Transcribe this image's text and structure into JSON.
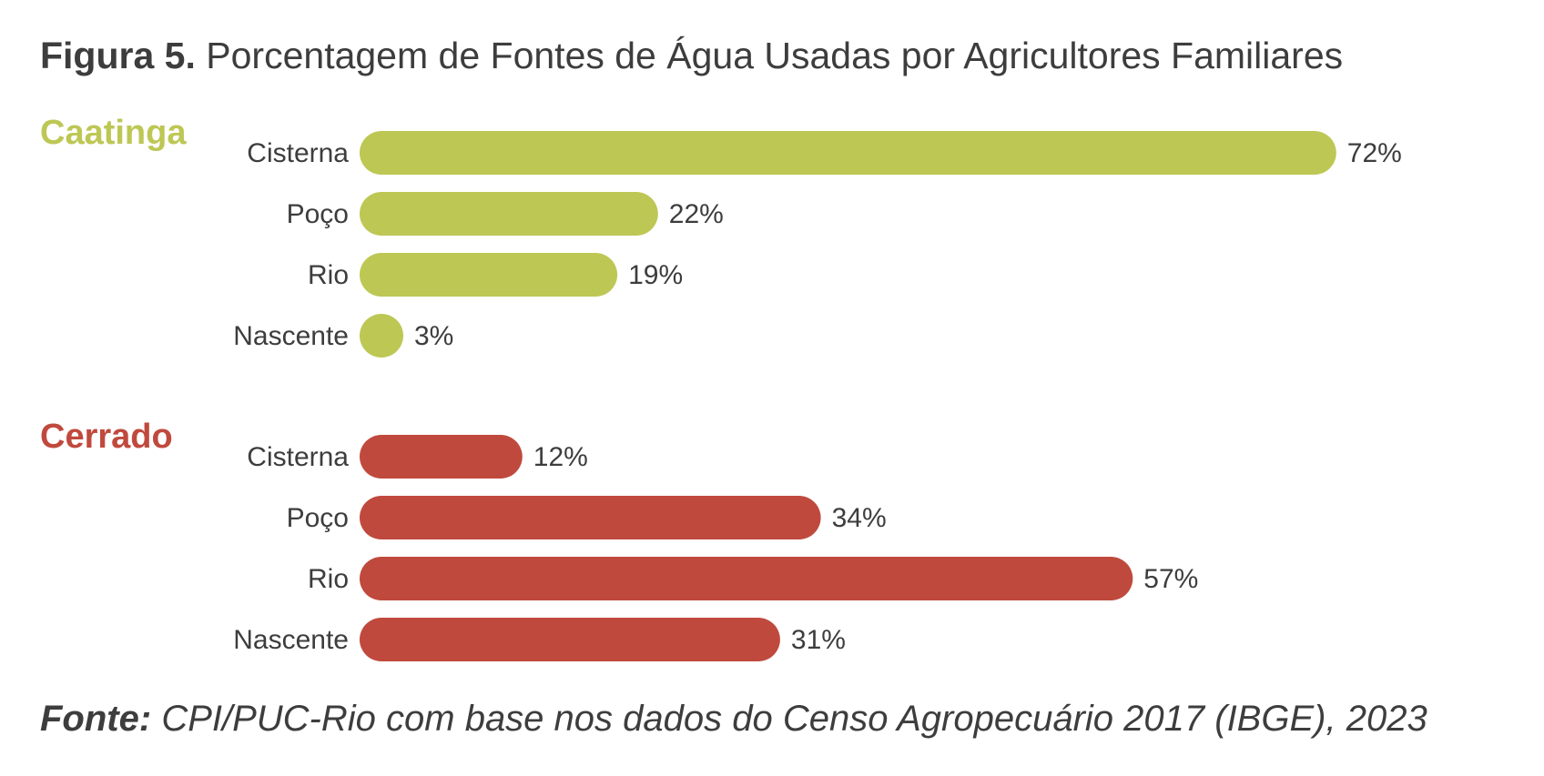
{
  "figure": {
    "title_lead": "Figura 5.",
    "title_rest": "Porcentagem de Fontes de Água Usadas por Agricultores Familiares",
    "source_lead": "Fonte:",
    "source_rest": "CPI/PUC-Rio com base nos dados do Censo Agropecuário 2017 (IBGE), 2023"
  },
  "colors": {
    "caatinga": "#bdc754",
    "cerrado": "#c0493d",
    "text": "#3d3d3d"
  },
  "chart_data": {
    "type": "bar",
    "orientation": "horizontal",
    "title": "Porcentagem de Fontes de Água Usadas por Agricultores Familiares",
    "value_format": "percent",
    "xlim": [
      0,
      100
    ],
    "grid": false,
    "groups": [
      {
        "name": "Caatinga",
        "color": "#bdc754",
        "categories": [
          "Cisterna",
          "Poço",
          "Rio",
          "Nascente"
        ],
        "values": [
          72,
          22,
          19,
          3
        ],
        "labels": [
          "72%",
          "22%",
          "19%",
          "3%"
        ]
      },
      {
        "name": "Cerrado",
        "color": "#c0493d",
        "categories": [
          "Cisterna",
          "Poço",
          "Rio",
          "Nascente"
        ],
        "values": [
          12,
          34,
          57,
          31
        ],
        "labels": [
          "12%",
          "34%",
          "57%",
          "31%"
        ]
      }
    ]
  }
}
